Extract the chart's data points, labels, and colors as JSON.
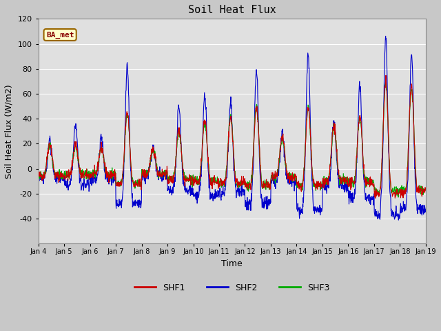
{
  "title": "Soil Heat Flux",
  "xlabel": "Time",
  "ylabel": "Soil Heat Flux (W/m2)",
  "ylim": [
    -60,
    120
  ],
  "yticks": [
    -40,
    -20,
    0,
    20,
    40,
    60,
    80,
    100,
    120
  ],
  "xtick_labels": [
    "Jan 4",
    "Jan 5",
    "Jan 6",
    "Jan 7",
    "Jan 8",
    "Jan 9",
    "Jan 10",
    "Jan 11",
    "Jan 12",
    "Jan 13",
    "Jan 14",
    "Jan 15",
    "Jan 16",
    "Jan 17",
    "Jan 18",
    "Jan 19"
  ],
  "shf1_color": "#cc0000",
  "shf2_color": "#0000cc",
  "shf3_color": "#00aa00",
  "legend_label": "BA_met",
  "legend_bg": "#ffffcc",
  "legend_border": "#996600",
  "plot_bg": "#e8e8e8",
  "line_width": 0.8,
  "title_fontsize": 11,
  "axis_label_fontsize": 9,
  "tick_fontsize": 8
}
